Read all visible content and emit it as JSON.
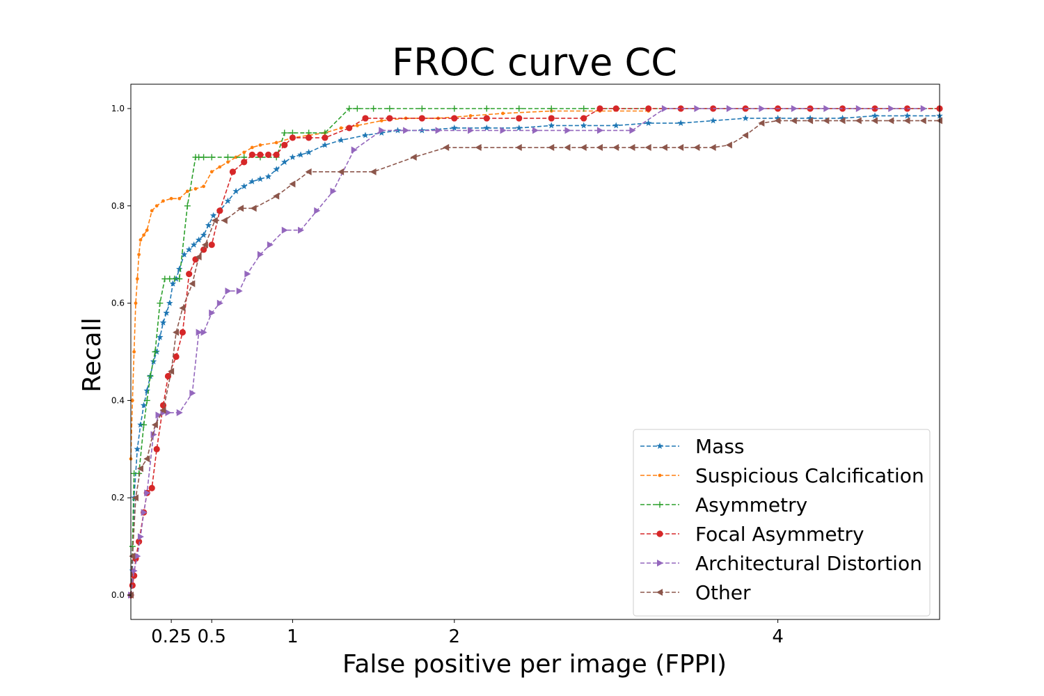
{
  "chart_data": {
    "type": "line",
    "title": "FROC curve CC",
    "xlabel": "False positive per image (FPPI)",
    "ylabel": "Recall",
    "xlim": [
      0,
      5.0
    ],
    "ylim": [
      -0.05,
      1.05
    ],
    "x_ticks": [
      {
        "value": 0.25,
        "label": "0.25"
      },
      {
        "value": 0.5,
        "label": "0.5"
      },
      {
        "value": 1,
        "label": "1"
      },
      {
        "value": 2,
        "label": "2"
      },
      {
        "value": 4,
        "label": "4"
      }
    ],
    "y_ticks": [
      {
        "value": 0.0,
        "label": "0.0"
      },
      {
        "value": 0.2,
        "label": "0.2"
      },
      {
        "value": 0.4,
        "label": "0.4"
      },
      {
        "value": 0.6,
        "label": "0.6"
      },
      {
        "value": 0.8,
        "label": "0.8"
      },
      {
        "value": 1.0,
        "label": "1.0"
      }
    ],
    "grid": false,
    "legend_position": "lower-right",
    "series": [
      {
        "name": "Mass",
        "color": "#1f77b4",
        "marker": "star",
        "x": [
          0.0,
          0.01,
          0.02,
          0.04,
          0.06,
          0.08,
          0.1,
          0.12,
          0.14,
          0.16,
          0.18,
          0.2,
          0.22,
          0.24,
          0.26,
          0.28,
          0.3,
          0.33,
          0.36,
          0.39,
          0.42,
          0.45,
          0.48,
          0.51,
          0.55,
          0.6,
          0.65,
          0.7,
          0.75,
          0.8,
          0.85,
          0.9,
          0.95,
          1.0,
          1.05,
          1.1,
          1.2,
          1.3,
          1.45,
          1.55,
          1.65,
          1.8,
          2.0,
          2.2,
          2.4,
          2.6,
          2.8,
          3.0,
          3.2,
          3.4,
          3.6,
          3.8,
          4.0,
          4.2,
          4.4,
          4.6,
          4.8,
          5.0
        ],
        "y": [
          0.0,
          0.05,
          0.2,
          0.3,
          0.35,
          0.39,
          0.42,
          0.45,
          0.48,
          0.5,
          0.53,
          0.56,
          0.58,
          0.6,
          0.64,
          0.65,
          0.67,
          0.7,
          0.71,
          0.72,
          0.73,
          0.74,
          0.76,
          0.78,
          0.79,
          0.81,
          0.83,
          0.84,
          0.85,
          0.855,
          0.86,
          0.875,
          0.89,
          0.9,
          0.905,
          0.91,
          0.925,
          0.935,
          0.945,
          0.95,
          0.955,
          0.955,
          0.96,
          0.96,
          0.96,
          0.965,
          0.965,
          0.965,
          0.97,
          0.97,
          0.975,
          0.98,
          0.98,
          0.98,
          0.98,
          0.985,
          0.985,
          0.985
        ]
      },
      {
        "name": "Suspicious Calcification",
        "color": "#ff7f0e",
        "marker": "point",
        "x": [
          0.0,
          0.01,
          0.02,
          0.03,
          0.04,
          0.05,
          0.06,
          0.08,
          0.1,
          0.13,
          0.16,
          0.2,
          0.25,
          0.3,
          0.35,
          0.4,
          0.45,
          0.5,
          0.55,
          0.6,
          0.65,
          0.7,
          0.75,
          0.8,
          0.9,
          1.0,
          1.1,
          1.2,
          1.3,
          1.4,
          1.55,
          1.7,
          1.9,
          2.1,
          2.3,
          2.6,
          2.9,
          3.2
        ],
        "y": [
          0.28,
          0.4,
          0.5,
          0.6,
          0.65,
          0.7,
          0.73,
          0.74,
          0.75,
          0.79,
          0.8,
          0.81,
          0.815,
          0.815,
          0.83,
          0.835,
          0.84,
          0.87,
          0.88,
          0.89,
          0.9,
          0.91,
          0.92,
          0.925,
          0.93,
          0.94,
          0.945,
          0.95,
          0.96,
          0.965,
          0.975,
          0.98,
          0.98,
          0.985,
          0.99,
          0.995,
          0.995,
          0.995
        ]
      },
      {
        "name": "Asymmetry",
        "color": "#2ca02c",
        "marker": "plus",
        "x": [
          0.0,
          0.01,
          0.02,
          0.05,
          0.08,
          0.1,
          0.12,
          0.15,
          0.18,
          0.21,
          0.24,
          0.27,
          0.3,
          0.35,
          0.4,
          0.42,
          0.45,
          0.5,
          0.6,
          0.7,
          0.8,
          0.9,
          0.95,
          1.0,
          1.1,
          1.2,
          1.35,
          1.4,
          1.5,
          1.6,
          1.8,
          2.0,
          2.2,
          2.4,
          2.6,
          2.8,
          3.0,
          3.2,
          3.4,
          3.6,
          3.8,
          4.0,
          4.2,
          4.4,
          4.6,
          4.8,
          5.0
        ],
        "y": [
          0.0,
          0.1,
          0.25,
          0.25,
          0.35,
          0.4,
          0.45,
          0.5,
          0.6,
          0.65,
          0.65,
          0.65,
          0.65,
          0.8,
          0.9,
          0.9,
          0.9,
          0.9,
          0.9,
          0.9,
          0.9,
          0.9,
          0.95,
          0.95,
          0.95,
          0.95,
          1.0,
          1.0,
          1.0,
          1.0,
          1.0,
          1.0,
          1.0,
          1.0,
          1.0,
          1.0,
          1.0,
          1.0,
          1.0,
          1.0,
          1.0,
          1.0,
          1.0,
          1.0,
          1.0,
          1.0,
          1.0
        ]
      },
      {
        "name": "Focal Asymmetry",
        "color": "#d62728",
        "marker": "circle",
        "x": [
          0.0,
          0.01,
          0.02,
          0.03,
          0.05,
          0.08,
          0.1,
          0.13,
          0.16,
          0.2,
          0.23,
          0.28,
          0.32,
          0.36,
          0.4,
          0.45,
          0.5,
          0.55,
          0.63,
          0.7,
          0.75,
          0.8,
          0.85,
          0.9,
          0.95,
          1.0,
          1.1,
          1.2,
          1.35,
          1.45,
          1.6,
          1.8,
          2.0,
          2.2,
          2.4,
          2.6,
          2.8,
          2.9,
          3.0,
          3.2,
          3.4,
          3.6,
          3.8,
          4.0,
          4.2,
          4.4,
          4.6,
          4.8,
          5.0
        ],
        "y": [
          0.0,
          0.02,
          0.04,
          0.075,
          0.11,
          0.17,
          0.21,
          0.22,
          0.3,
          0.39,
          0.45,
          0.49,
          0.54,
          0.66,
          0.69,
          0.71,
          0.72,
          0.79,
          0.87,
          0.89,
          0.905,
          0.905,
          0.905,
          0.905,
          0.925,
          0.94,
          0.94,
          0.94,
          0.96,
          0.98,
          0.98,
          0.98,
          0.98,
          0.98,
          0.98,
          0.98,
          0.98,
          1.0,
          1.0,
          1.0,
          1.0,
          1.0,
          1.0,
          1.0,
          1.0,
          1.0,
          1.0,
          1.0,
          1.0
        ]
      },
      {
        "name": "Architectural Distortion",
        "color": "#9467bd",
        "marker": "triangle-right",
        "x": [
          0.0,
          0.02,
          0.04,
          0.06,
          0.08,
          0.1,
          0.14,
          0.17,
          0.2,
          0.23,
          0.3,
          0.38,
          0.42,
          0.45,
          0.5,
          0.55,
          0.6,
          0.67,
          0.72,
          0.8,
          0.86,
          0.95,
          1.05,
          1.15,
          1.25,
          1.38,
          1.55,
          1.7,
          1.9,
          2.1,
          2.3,
          2.5,
          2.7,
          2.9,
          3.1,
          3.3,
          3.5,
          3.7,
          3.9,
          4.1,
          4.3,
          4.5,
          4.7,
          4.9
        ],
        "y": [
          0.0,
          0.05,
          0.08,
          0.12,
          0.17,
          0.21,
          0.33,
          0.37,
          0.375,
          0.375,
          0.375,
          0.415,
          0.54,
          0.54,
          0.58,
          0.6,
          0.625,
          0.625,
          0.66,
          0.7,
          0.72,
          0.75,
          0.75,
          0.79,
          0.83,
          0.915,
          0.955,
          0.955,
          0.955,
          0.955,
          0.955,
          0.955,
          0.955,
          0.955,
          0.955,
          1.0,
          1.0,
          1.0,
          1.0,
          1.0,
          1.0,
          1.0,
          1.0,
          1.0
        ]
      },
      {
        "name": "Other",
        "color": "#8c564b",
        "marker": "triangle-left",
        "x": [
          0.0,
          0.01,
          0.03,
          0.06,
          0.1,
          0.15,
          0.2,
          0.25,
          0.28,
          0.32,
          0.38,
          0.42,
          0.46,
          0.52,
          0.58,
          0.68,
          0.76,
          0.9,
          1.0,
          1.1,
          1.3,
          1.5,
          1.75,
          1.95,
          2.15,
          2.4,
          2.6,
          2.7,
          2.8,
          2.9,
          3.0,
          3.1,
          3.2,
          3.3,
          3.4,
          3.5,
          3.6,
          3.7,
          3.8,
          3.9,
          4.0,
          4.1,
          4.2,
          4.3,
          4.4,
          4.5,
          4.6,
          4.7,
          4.8,
          4.9,
          5.0
        ],
        "y": [
          0.0,
          0.08,
          0.2,
          0.26,
          0.28,
          0.35,
          0.38,
          0.46,
          0.54,
          0.59,
          0.64,
          0.695,
          0.72,
          0.77,
          0.77,
          0.795,
          0.795,
          0.82,
          0.845,
          0.87,
          0.87,
          0.87,
          0.9,
          0.92,
          0.92,
          0.92,
          0.92,
          0.92,
          0.92,
          0.92,
          0.92,
          0.92,
          0.92,
          0.92,
          0.92,
          0.92,
          0.92,
          0.925,
          0.945,
          0.97,
          0.975,
          0.975,
          0.975,
          0.975,
          0.975,
          0.975,
          0.975,
          0.975,
          0.975,
          0.975,
          0.975
        ]
      }
    ]
  }
}
